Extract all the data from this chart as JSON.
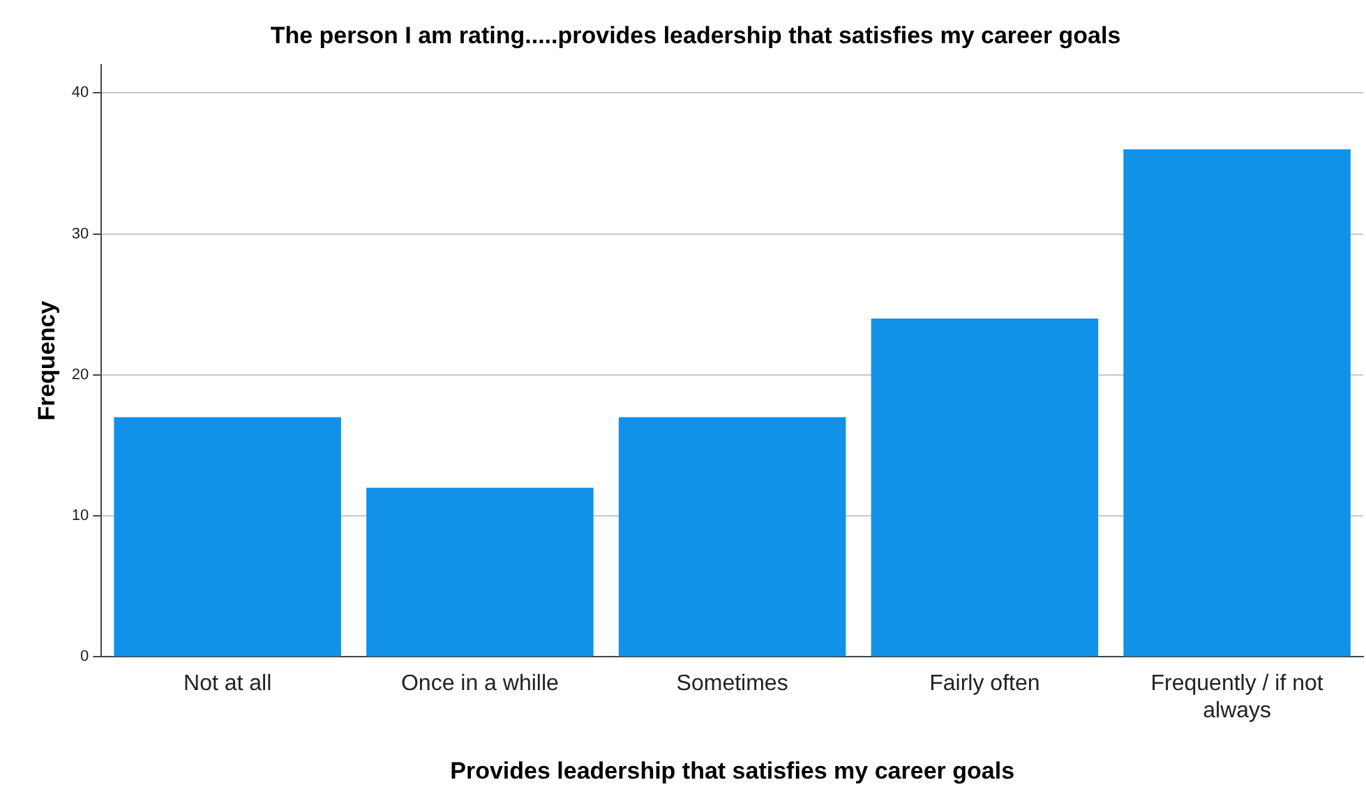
{
  "chart_data": {
    "type": "bar",
    "title": "The person I am rating.....provides leadership that satisfies my career goals",
    "xlabel": "Provides leadership that satisfies my career goals",
    "ylabel": "Frequency",
    "categories": [
      "Not at all",
      "Once in a whille",
      "Sometimes",
      "Fairly often",
      "Frequently / if not always"
    ],
    "values": [
      17,
      12,
      17,
      24,
      36
    ],
    "color": "#1192e8",
    "ylim": [
      0,
      42
    ],
    "yticks": [
      0,
      10,
      20,
      30,
      40
    ],
    "grid": "y",
    "legend": false
  }
}
